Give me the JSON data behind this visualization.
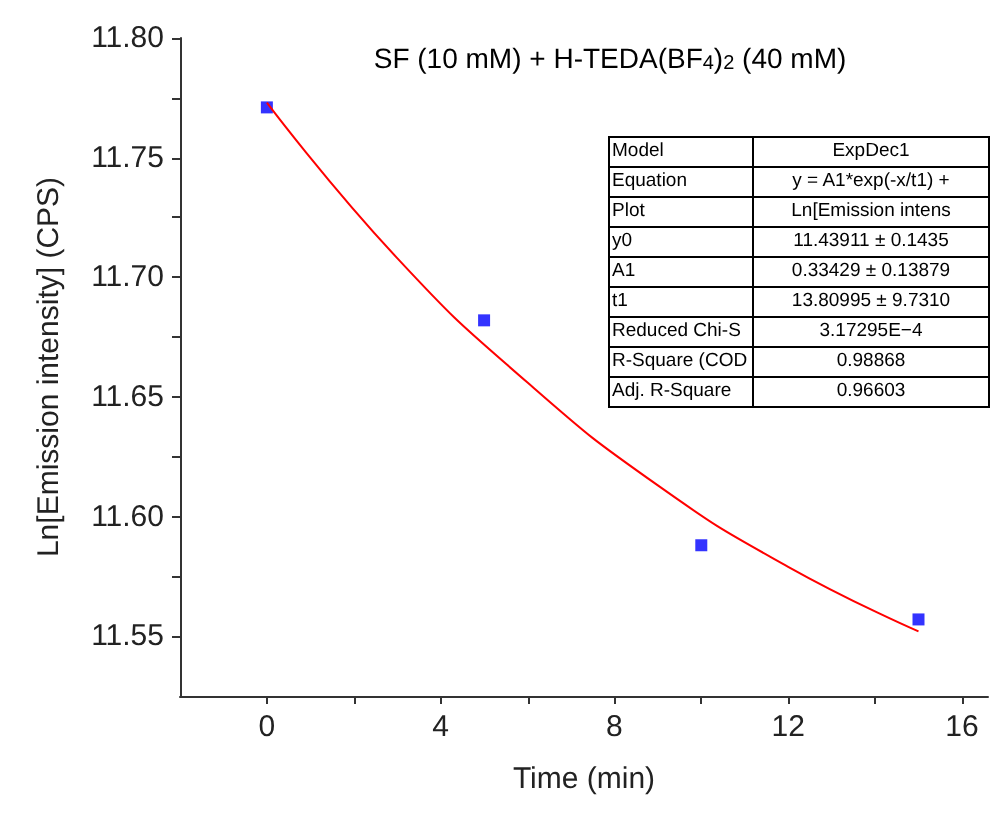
{
  "chart_data": {
    "type": "scatter",
    "title": "SF (10 mM) + H-TEDA(BF$_{4}$)$_{2}$ (40 mM)",
    "xlabel": "Time (min)",
    "ylabel": "Ln[Emission intensity] (CPS)",
    "series": [
      {
        "color": "#0000ff",
        "x": [
          0,
          5,
          10,
          15
        ],
        "values": [
          11.771,
          11.682,
          11.588,
          11.557
        ]
      },
      {
        "type": "line",
        "color": "#ff0000",
        "marker": "none",
        "x": [
          0,
          3,
          6,
          9,
          12,
          15
        ],
        "values": [
          11.773,
          11.708,
          11.656,
          11.613,
          11.579,
          11.552
        ]
      }
    ],
    "xlim": [
      -2,
      16.6
    ],
    "ylim": [
      11.525,
      11.8
    ],
    "xticks": [
      0,
      {
        "value": 2,
        "label": null
      },
      4,
      {
        "value": 6,
        "label": null
      },
      8,
      {
        "value": 10,
        "label": null
      },
      12,
      {
        "value": 14,
        "label": null
      },
      16
    ],
    "yticks": [
      11.55,
      {
        "value": 11.575,
        "label": null
      },
      {
        "value": 11.6,
        "label": "11.60"
      },
      {
        "value": 11.625,
        "label": null
      },
      11.65,
      {
        "value": 11.675,
        "label": null
      },
      {
        "value": 11.7,
        "label": "11.70"
      },
      {
        "value": 11.725,
        "label": null
      },
      11.75,
      {
        "value": 11.775,
        "label": null
      },
      {
        "value": 11.8,
        "label": "11.80"
      }
    ],
    "marker": "square",
    "grid": false,
    "annotations": [
      "Model",
      "ExpDec1",
      "Equation",
      "y = A1*exp(-x/t1) +",
      "Plot",
      "Ln[Emission intens",
      "y0",
      "11.43911 ± 0.1435",
      "A1",
      "0.33429 ± 0.13879",
      "t1",
      "13.80995 ± 9.7310",
      "Reduced Chi-S",
      "3.17295E−4",
      "R-Square (COD",
      "0.98868",
      "Adj. R-Square",
      "0.96603"
    ]
  }
}
